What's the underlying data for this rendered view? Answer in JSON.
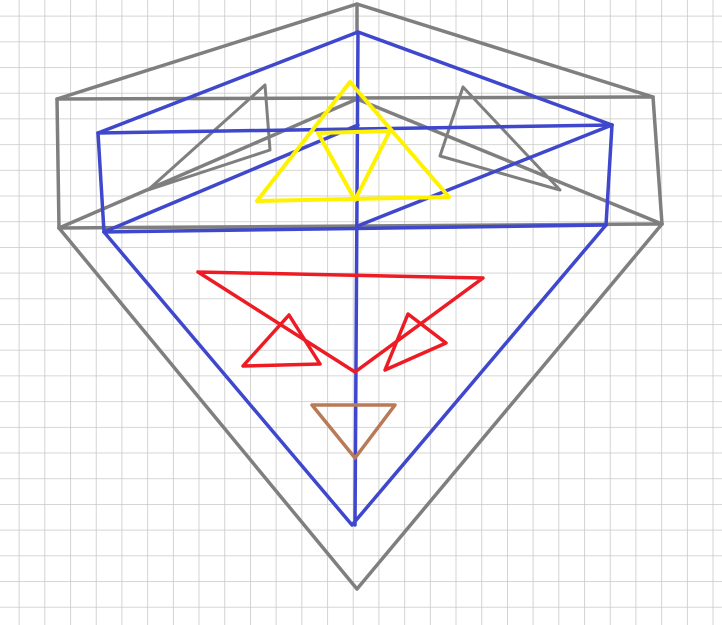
{
  "colors": {
    "background": "#ffffff",
    "grid": "#c8c8c8",
    "outer_shape": "#7f7f7f",
    "inner_shape": "#3f48cc",
    "triforce": "#fff200",
    "red_figure": "#ed1c24",
    "small_triangle": "#b97a57"
  }
}
